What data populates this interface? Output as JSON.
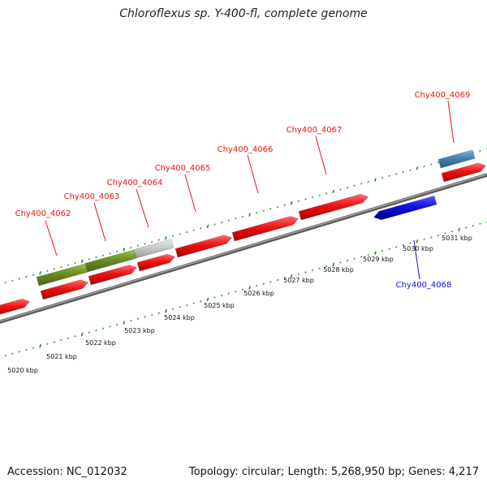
{
  "header": {
    "title": "Chloroflexus sp. Y-400-fl, complete genome"
  },
  "footer": {
    "accession": "Accession: NC_012032",
    "topology": "Topology: circular; Length: 5,268,950 bp; Genes: 4,217"
  },
  "colors": {
    "forward_cds": "#ee1111",
    "reverse_cds": "#1111dd",
    "rrna_like": "#6b8e23",
    "pseudo_like": "#c8c8c8",
    "trna_like": "#4682b4",
    "backbone": "#808080",
    "ticks": "#228b22"
  },
  "scale": {
    "unit": "kbp",
    "labels": [
      "5020 kbp",
      "5021 kbp",
      "5022 kbp",
      "5023 kbp",
      "5024 kbp",
      "5025 kbp",
      "5026 kbp",
      "5027 kbp",
      "5028 kbp",
      "5029 kbp",
      "5030 kbp",
      "5031 kbp"
    ]
  },
  "genes": [
    {
      "label": "Chy400_4062",
      "strand": "forward"
    },
    {
      "label": "Chy400_4063",
      "strand": "forward"
    },
    {
      "label": "Chy400_4064",
      "strand": "forward"
    },
    {
      "label": "Chy400_4065",
      "strand": "forward"
    },
    {
      "label": "Chy400_4066",
      "strand": "forward"
    },
    {
      "label": "Chy400_4067",
      "strand": "forward"
    },
    {
      "label": "Chy400_4068",
      "strand": "reverse"
    },
    {
      "label": "Chy400_4069",
      "strand": "forward"
    }
  ]
}
